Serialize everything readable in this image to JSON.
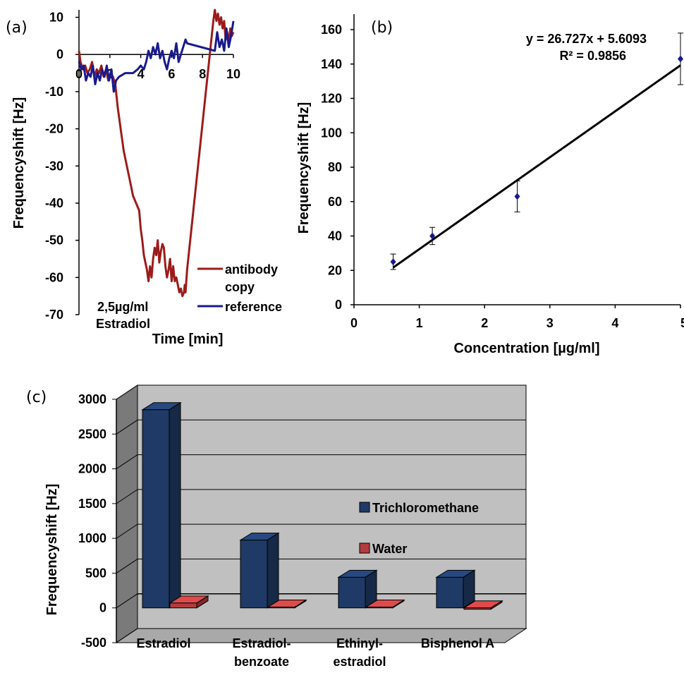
{
  "chart_data": [
    {
      "panel": "(a)",
      "type": "line",
      "xlabel": "Time [min]",
      "ylabel": "Frequencyshift [Hz]",
      "xlim": [
        0,
        10
      ],
      "ylim": [
        -70,
        12
      ],
      "x_ticks": [
        0,
        2,
        4,
        6,
        8,
        10
      ],
      "y_ticks": [
        10,
        0,
        -10,
        -20,
        -30,
        -40,
        -50,
        -60,
        -70
      ],
      "x_tick_labels": [
        "0",
        "2",
        "4",
        "6",
        "8",
        "10"
      ],
      "y_tick_labels": [
        "10",
        "0",
        "-10",
        "-20",
        "-30",
        "-40",
        "-50",
        "-60",
        "-70"
      ],
      "legend_position": "bottom-right",
      "annotation": [
        "2,5µg/ml",
        "Estradiol"
      ],
      "series": [
        {
          "name": "antibody copy",
          "legend_lines": [
            "antibody",
            "copy"
          ],
          "color": "#9b1c1c",
          "x": [
            0,
            0.1,
            0.25,
            0.4,
            0.55,
            0.7,
            0.85,
            1.0,
            1.15,
            1.3,
            1.45,
            1.6,
            1.75,
            1.9,
            2.05,
            2.2,
            2.35,
            2.5,
            2.7,
            2.9,
            3.1,
            3.3,
            3.5,
            3.7,
            3.9,
            4.0,
            4.1,
            4.2,
            4.3,
            4.4,
            4.5,
            4.6,
            4.7,
            4.8,
            4.9,
            5.0,
            5.1,
            5.2,
            5.3,
            5.4,
            5.5,
            5.6,
            5.7,
            5.8,
            5.9,
            6.0,
            6.1,
            6.2,
            6.3,
            6.4,
            6.5,
            6.6,
            6.7,
            6.8,
            6.85,
            6.9,
            7.0,
            8.7,
            8.8,
            8.9,
            9.0,
            9.1,
            9.2,
            9.3,
            9.4,
            9.5,
            9.6,
            9.7,
            9.8,
            9.9,
            10.0
          ],
          "y": [
            1,
            -2,
            -4,
            -3,
            -5,
            -4,
            -2,
            -6,
            -4,
            -5,
            -3,
            -6,
            -4,
            -7,
            -5,
            -6,
            -8,
            -14,
            -20,
            -26,
            -30,
            -34,
            -38,
            -40,
            -42,
            -47,
            -50,
            -54,
            -56,
            -58,
            -61,
            -57,
            -60,
            -55,
            -52,
            -54,
            -50,
            -56,
            -53,
            -51,
            -52,
            -57,
            -60,
            -58,
            -55,
            -61,
            -57,
            -61,
            -60,
            -62,
            -64,
            -63,
            -65,
            -64,
            -62,
            -64,
            -58,
            9,
            12,
            9,
            11,
            8,
            10,
            7,
            9,
            4,
            6,
            3,
            7,
            5,
            6
          ]
        },
        {
          "name": "reference",
          "color": "#1a1a8c",
          "x": [
            0,
            0.15,
            0.3,
            0.45,
            0.6,
            0.75,
            0.9,
            1.05,
            1.2,
            1.35,
            1.5,
            1.65,
            1.8,
            1.95,
            2.1,
            2.25,
            2.4,
            2.6,
            3.0,
            3.5,
            3.8,
            4.0,
            4.2,
            4.35,
            4.5,
            4.65,
            4.8,
            4.95,
            5.1,
            5.25,
            5.4,
            5.55,
            5.7,
            5.85,
            6.0,
            6.15,
            6.3,
            6.45,
            6.6,
            6.75,
            6.9,
            7.0,
            8.8,
            8.95,
            9.1,
            9.25,
            9.4,
            9.55,
            9.7,
            9.85,
            10.0
          ],
          "y": [
            -2,
            -4,
            -3,
            -7,
            -5,
            -6,
            -3,
            -8,
            -5,
            -7,
            -4,
            -6,
            -3,
            -7,
            -4,
            -10,
            -7,
            -6,
            -5,
            -5,
            -4,
            -3,
            -4,
            -2,
            1,
            -1,
            2,
            0,
            3,
            -1,
            1,
            -2,
            -4,
            -1,
            1,
            -1,
            3,
            -2,
            0,
            2,
            4,
            3,
            1,
            6,
            2,
            4,
            1,
            7,
            2,
            5,
            9
          ]
        }
      ]
    },
    {
      "panel": "(b)",
      "type": "scatter",
      "xlabel": "Concentration [µg/ml]",
      "ylabel": "Frequencyshift [Hz]",
      "xlim": [
        0,
        5
      ],
      "ylim": [
        0,
        160
      ],
      "x_ticks": [
        0,
        1,
        2,
        3,
        4,
        5
      ],
      "y_ticks": [
        0,
        20,
        40,
        60,
        80,
        100,
        120,
        140,
        160
      ],
      "x_tick_labels": [
        "0",
        "1",
        "2",
        "3",
        "4",
        "5"
      ],
      "y_tick_labels": [
        "0",
        "20",
        "40",
        "60",
        "80",
        "100",
        "120",
        "140",
        "160"
      ],
      "points": {
        "x": [
          0.6,
          1.2,
          2.5,
          5.0
        ],
        "y": [
          25,
          40,
          63,
          143
        ],
        "err": [
          4.5,
          5.0,
          9.0,
          15.0
        ],
        "color": "#1a1a8c"
      },
      "fit": {
        "slope": 26.727,
        "intercept": 5.6093,
        "x_range": [
          0.6,
          5.0
        ]
      },
      "annotation": [
        "y = 26.727x + 5.6093",
        "R² = 0.9856"
      ]
    },
    {
      "panel": "(c)",
      "type": "bar",
      "ylabel": "Frequencyshift [Hz]",
      "ylim": [
        -500,
        3000
      ],
      "y_ticks": [
        3000,
        2500,
        2000,
        1500,
        1000,
        500,
        0,
        -500
      ],
      "y_tick_labels": [
        "3000",
        "2500",
        "2000",
        "1500",
        "1000",
        "500",
        "0",
        "-500"
      ],
      "categories": [
        [
          "Estradiol"
        ],
        [
          "Estradiol-",
          "benzoate"
        ],
        [
          "Ethinyl-",
          "estradiol"
        ],
        [
          "Bisphenol A"
        ]
      ],
      "legend_position": "right",
      "grid": true,
      "series": [
        {
          "name": "Trichloromethane",
          "values": [
            2850,
            975,
            440,
            440
          ],
          "color": "#1f3a66"
        },
        {
          "name": "Water",
          "values": [
            70,
            12,
            12,
            -20
          ],
          "color": "#b23c3c"
        }
      ]
    }
  ]
}
